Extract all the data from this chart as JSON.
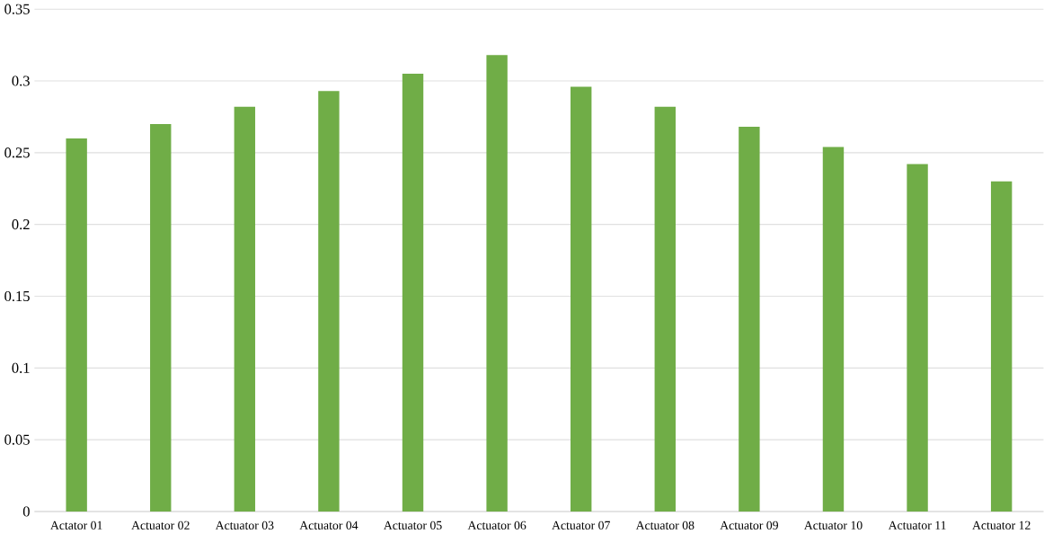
{
  "chart_data": {
    "type": "bar",
    "categories": [
      "Actator 01",
      "Actuator 02",
      "Actuator 03",
      "Actuator 04",
      "Actuator 05",
      "Actuator 06",
      "Actuator 07",
      "Actuator 08",
      "Actuator 09",
      "Actuator 10",
      "Actuator 11",
      "Actuator 12"
    ],
    "values": [
      0.26,
      0.27,
      0.282,
      0.293,
      0.305,
      0.318,
      0.296,
      0.282,
      0.268,
      0.254,
      0.242,
      0.23
    ],
    "color": "#70ad47",
    "ylim": [
      0,
      0.35
    ],
    "yticks": [
      0,
      0.05,
      0.1,
      0.15,
      0.2,
      0.25,
      0.3,
      0.35
    ],
    "grid": "y"
  }
}
